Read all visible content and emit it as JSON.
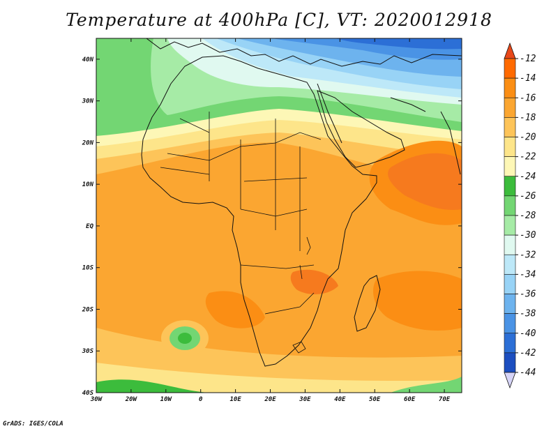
{
  "title": "Temperature at 400hPa [C], VT: 2020012918",
  "credit": "GrADS: IGES/COLA",
  "map": {
    "lon_range": [
      -30,
      75
    ],
    "lat_range": [
      -40,
      45
    ],
    "lat_ticks": [
      {
        "value": 40,
        "label": "40N"
      },
      {
        "value": 30,
        "label": "30N"
      },
      {
        "value": 20,
        "label": "20N"
      },
      {
        "value": 10,
        "label": "10N"
      },
      {
        "value": 0,
        "label": "EQ"
      },
      {
        "value": -10,
        "label": "10S"
      },
      {
        "value": -20,
        "label": "20S"
      },
      {
        "value": -30,
        "label": "30S"
      },
      {
        "value": -40,
        "label": "40S"
      }
    ],
    "lon_ticks": [
      {
        "value": -30,
        "label": "30W"
      },
      {
        "value": -20,
        "label": "20W"
      },
      {
        "value": -10,
        "label": "10W"
      },
      {
        "value": 0,
        "label": "0"
      },
      {
        "value": 10,
        "label": "10E"
      },
      {
        "value": 20,
        "label": "20E"
      },
      {
        "value": 30,
        "label": "30E"
      },
      {
        "value": 40,
        "label": "40E"
      },
      {
        "value": 50,
        "label": "50E"
      },
      {
        "value": 60,
        "label": "60E"
      },
      {
        "value": 70,
        "label": "70E"
      }
    ]
  },
  "colorbar": {
    "units": "C",
    "levels": [
      {
        "label": "-12",
        "color": "#ff6a00"
      },
      {
        "label": "-14",
        "color": "#fb8e14"
      },
      {
        "label": "-16",
        "color": "#fba631"
      },
      {
        "label": "-18",
        "color": "#fdc459"
      },
      {
        "label": "-20",
        "color": "#fde58a"
      },
      {
        "label": "-22",
        "color": "#fdf7b6"
      },
      {
        "label": "-24",
        "color": "#3cbc3c"
      },
      {
        "label": "-26",
        "color": "#73d673"
      },
      {
        "label": "-28",
        "color": "#a6eba6"
      },
      {
        "label": "-30",
        "color": "#e0f9f0"
      },
      {
        "label": "-32",
        "color": "#bde8f8"
      },
      {
        "label": "-34",
        "color": "#98d3f6"
      },
      {
        "label": "-36",
        "color": "#6db3ee"
      },
      {
        "label": "-38",
        "color": "#4a93e5"
      },
      {
        "label": "-40",
        "color": "#2c6fd6"
      },
      {
        "label": "-42",
        "color": "#1c4ec0"
      },
      {
        "label": "-44",
        "color": "#0d1c7a"
      }
    ],
    "top_color": "#e8481a",
    "bottom_color": "#d6d4f7"
  }
}
